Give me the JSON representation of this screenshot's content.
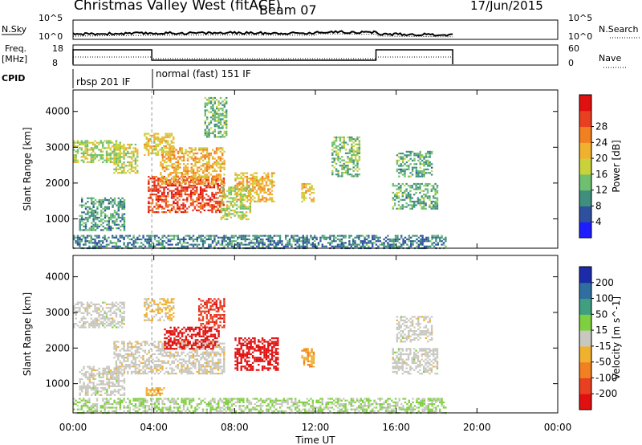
{
  "header": {
    "station": "Christmas Valley West (fitACF)",
    "beam": "Beam 07",
    "date": "17/Jun/2015"
  },
  "strips": {
    "nsky_label": "N.Sky",
    "nsky_ticks": [
      "10^5",
      "10^0"
    ],
    "nsearch_label": "N.Search",
    "nsearch_ticks": [
      "10^5",
      "10^0"
    ],
    "freq_label": "Freq.",
    "freq_unit": "[MHz]",
    "freq_ticks": [
      "18",
      "8"
    ],
    "nave_label": "Nave",
    "nave_ticks": [
      "60",
      "0"
    ],
    "cpid_label": "CPID",
    "modes": [
      {
        "name": "rbsp 201 IF",
        "start_h": 0.0,
        "end_h": 3.9
      },
      {
        "name": "normal (fast) 151 IF",
        "start_h": 3.9,
        "end_h": 18.8
      }
    ]
  },
  "chart_data": [
    {
      "type": "heatmap",
      "title": "",
      "xlabel": "Time UT",
      "ylabel": "Slant Range [km]",
      "xlim_h": [
        0,
        24
      ],
      "ylim_km": [
        180,
        4600
      ],
      "x_ticks": [
        "00:00",
        "04:00",
        "08:00",
        "12:00",
        "16:00",
        "20:00",
        "00:00"
      ],
      "y_ticks": [
        "1000",
        "2000",
        "3000",
        "4000"
      ],
      "colorbar": {
        "label": "Power [dB]",
        "ticks": [
          "4",
          "8",
          "12",
          "16",
          "20",
          "24",
          "28"
        ],
        "range": [
          0,
          32
        ],
        "colors": [
          "#1d1dff",
          "#2f4f9f",
          "#3f8f7f",
          "#6fbf6f",
          "#c9d23a",
          "#f0b030",
          "#f08020",
          "#e84020",
          "#e01010"
        ]
      },
      "echo_regions": [
        {
          "t0": 0.0,
          "t1": 2.3,
          "r0": 2600,
          "r1": 3200,
          "value": 15
        },
        {
          "t0": 0.3,
          "t1": 2.5,
          "r0": 700,
          "r1": 1600,
          "value": 10
        },
        {
          "t0": 2.0,
          "t1": 3.2,
          "r0": 2300,
          "r1": 3100,
          "value": 16
        },
        {
          "t0": 3.7,
          "t1": 7.5,
          "r0": 1200,
          "r1": 2200,
          "value": 27
        },
        {
          "t0": 4.3,
          "t1": 7.5,
          "r0": 2000,
          "r1": 3000,
          "value": 20
        },
        {
          "t0": 3.5,
          "t1": 5.0,
          "r0": 2800,
          "r1": 3400,
          "value": 18
        },
        {
          "t0": 6.5,
          "t1": 7.6,
          "r0": 3300,
          "r1": 4400,
          "value": 12
        },
        {
          "t0": 8.0,
          "t1": 10.0,
          "r0": 1500,
          "r1": 2300,
          "value": 20
        },
        {
          "t0": 7.3,
          "t1": 8.8,
          "r0": 1000,
          "r1": 1900,
          "value": 15
        },
        {
          "t0": 11.3,
          "t1": 11.9,
          "r0": 1500,
          "r1": 2000,
          "value": 18
        },
        {
          "t0": 12.8,
          "t1": 14.2,
          "r0": 2200,
          "r1": 3300,
          "value": 13
        },
        {
          "t0": 15.8,
          "t1": 18.0,
          "r0": 1300,
          "r1": 2000,
          "value": 11
        },
        {
          "t0": 16.0,
          "t1": 17.8,
          "r0": 2200,
          "r1": 2900,
          "value": 11
        },
        {
          "t0": 0.0,
          "t1": 18.5,
          "r0": 200,
          "r1": 550,
          "value": 8
        }
      ]
    },
    {
      "type": "heatmap",
      "title": "",
      "xlabel": "Time UT",
      "ylabel": "Slant Range [km]",
      "xlim_h": [
        0,
        24
      ],
      "ylim_km": [
        180,
        4600
      ],
      "x_ticks": [
        "00:00",
        "04:00",
        "08:00",
        "12:00",
        "16:00",
        "20:00",
        "00:00"
      ],
      "y_ticks": [
        "1000",
        "2000",
        "3000",
        "4000"
      ],
      "colorbar": {
        "label": "Velocity [m s^-1]",
        "ticks": [
          "200",
          "100",
          "50",
          "15",
          "-15",
          "-50",
          "-100",
          "-200"
        ],
        "range": [
          -250,
          250
        ],
        "colors": [
          "#1c2ca8",
          "#2f6fa0",
          "#3f9f7f",
          "#7fd040",
          "#c8c8c0",
          "#f0b030",
          "#f08020",
          "#e84020",
          "#e01010"
        ]
      },
      "echo_regions": [
        {
          "t0": 0.0,
          "t1": 2.5,
          "r0": 2600,
          "r1": 3300,
          "value": 0
        },
        {
          "t0": 0.3,
          "t1": 2.5,
          "r0": 700,
          "r1": 1500,
          "value": 0
        },
        {
          "t0": 2.0,
          "t1": 7.5,
          "r0": 1300,
          "r1": 2200,
          "value": -5
        },
        {
          "t0": 3.5,
          "t1": 5.0,
          "r0": 2800,
          "r1": 3400,
          "value": -40
        },
        {
          "t0": 4.5,
          "t1": 7.2,
          "r0": 2000,
          "r1": 2600,
          "value": -220
        },
        {
          "t0": 6.2,
          "t1": 7.5,
          "r0": 2600,
          "r1": 3400,
          "value": -180
        },
        {
          "t0": 8.0,
          "t1": 10.1,
          "r0": 1400,
          "r1": 2300,
          "value": -230
        },
        {
          "t0": 11.3,
          "t1": 11.9,
          "r0": 1500,
          "r1": 2000,
          "value": -80
        },
        {
          "t0": 15.8,
          "t1": 18.0,
          "r0": 1300,
          "r1": 2000,
          "value": 0
        },
        {
          "t0": 16.0,
          "t1": 17.8,
          "r0": 2200,
          "r1": 2900,
          "value": 0
        },
        {
          "t0": 0.0,
          "t1": 18.5,
          "r0": 200,
          "r1": 600,
          "value": 30
        },
        {
          "t0": 3.6,
          "t1": 4.5,
          "r0": 700,
          "r1": 900,
          "value": -60
        }
      ]
    }
  ]
}
